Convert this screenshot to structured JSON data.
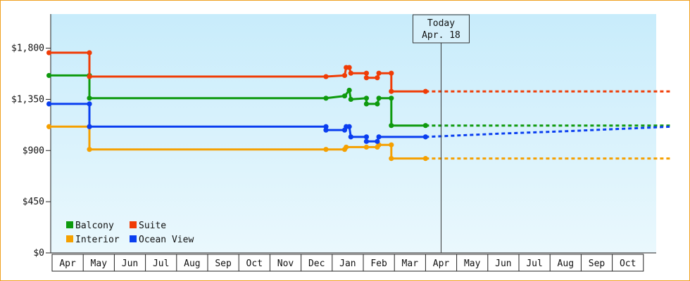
{
  "chart_data": {
    "type": "line",
    "step": true,
    "y_axis": {
      "ticks": [
        0,
        450,
        900,
        1350,
        1800
      ],
      "tick_labels": [
        "$0",
        "$450",
        "$900",
        "$1,350",
        "$1,800"
      ],
      "ylim": [
        0,
        2100
      ]
    },
    "x_axis": {
      "months": [
        "Apr",
        "May",
        "Jun",
        "Jul",
        "Aug",
        "Sep",
        "Oct",
        "Nov",
        "Dec",
        "Jan",
        "Feb",
        "Mar",
        "Apr",
        "May",
        "Jun",
        "Jul",
        "Aug",
        "Sep",
        "Oct"
      ]
    },
    "today": {
      "line1": "Today",
      "line2": "Apr. 18",
      "month_index": 12
    },
    "background": {
      "top": "#c8ecfb",
      "bottom": "#eaf8fd"
    },
    "grid": false,
    "legend_position": "bottom-left",
    "series": [
      {
        "name": "Balcony",
        "color": "#0e9a0e",
        "points": [
          [
            -0.1,
            1560
          ],
          [
            1.2,
            1560
          ],
          [
            1.2,
            1360
          ],
          [
            8.8,
            1360
          ],
          [
            9.4,
            1380
          ],
          [
            9.55,
            1430
          ],
          [
            9.6,
            1350
          ],
          [
            10.1,
            1360
          ],
          [
            10.1,
            1310
          ],
          [
            10.45,
            1310
          ],
          [
            10.5,
            1360
          ],
          [
            10.9,
            1360
          ],
          [
            10.9,
            1120
          ],
          [
            12.0,
            1120
          ]
        ],
        "forecast": [
          [
            12.0,
            1120
          ],
          [
            19.9,
            1120
          ]
        ]
      },
      {
        "name": "Suite",
        "color": "#f03c06",
        "points": [
          [
            -0.1,
            1760
          ],
          [
            1.2,
            1760
          ],
          [
            1.2,
            1550
          ],
          [
            8.8,
            1550
          ],
          [
            9.4,
            1560
          ],
          [
            9.45,
            1630
          ],
          [
            9.55,
            1630
          ],
          [
            9.6,
            1580
          ],
          [
            10.1,
            1580
          ],
          [
            10.1,
            1540
          ],
          [
            10.45,
            1540
          ],
          [
            10.5,
            1580
          ],
          [
            10.9,
            1580
          ],
          [
            10.9,
            1420
          ],
          [
            12.0,
            1420
          ]
        ],
        "forecast": [
          [
            12.0,
            1420
          ],
          [
            19.9,
            1420
          ]
        ]
      },
      {
        "name": "Interior",
        "color": "#f5a000",
        "points": [
          [
            -0.1,
            1110
          ],
          [
            1.2,
            1110
          ],
          [
            1.2,
            910
          ],
          [
            8.8,
            910
          ],
          [
            9.4,
            910
          ],
          [
            9.45,
            930
          ],
          [
            10.1,
            930
          ],
          [
            10.45,
            930
          ],
          [
            10.5,
            950
          ],
          [
            10.9,
            950
          ],
          [
            10.9,
            830
          ],
          [
            12.0,
            830
          ]
        ],
        "forecast": [
          [
            12.0,
            830
          ],
          [
            19.9,
            830
          ]
        ]
      },
      {
        "name": "Ocean View",
        "color": "#0a3ef0",
        "points": [
          [
            -0.1,
            1310
          ],
          [
            1.2,
            1310
          ],
          [
            1.2,
            1110
          ],
          [
            8.8,
            1110
          ],
          [
            8.8,
            1080
          ],
          [
            9.4,
            1080
          ],
          [
            9.45,
            1110
          ],
          [
            9.55,
            1110
          ],
          [
            9.6,
            1020
          ],
          [
            10.1,
            1020
          ],
          [
            10.1,
            980
          ],
          [
            10.45,
            980
          ],
          [
            10.5,
            1020
          ],
          [
            12.0,
            1020
          ]
        ],
        "forecast": [
          [
            12.0,
            1020
          ],
          [
            14.5,
            1050
          ],
          [
            16.5,
            1070
          ],
          [
            19.9,
            1110
          ]
        ]
      }
    ]
  }
}
